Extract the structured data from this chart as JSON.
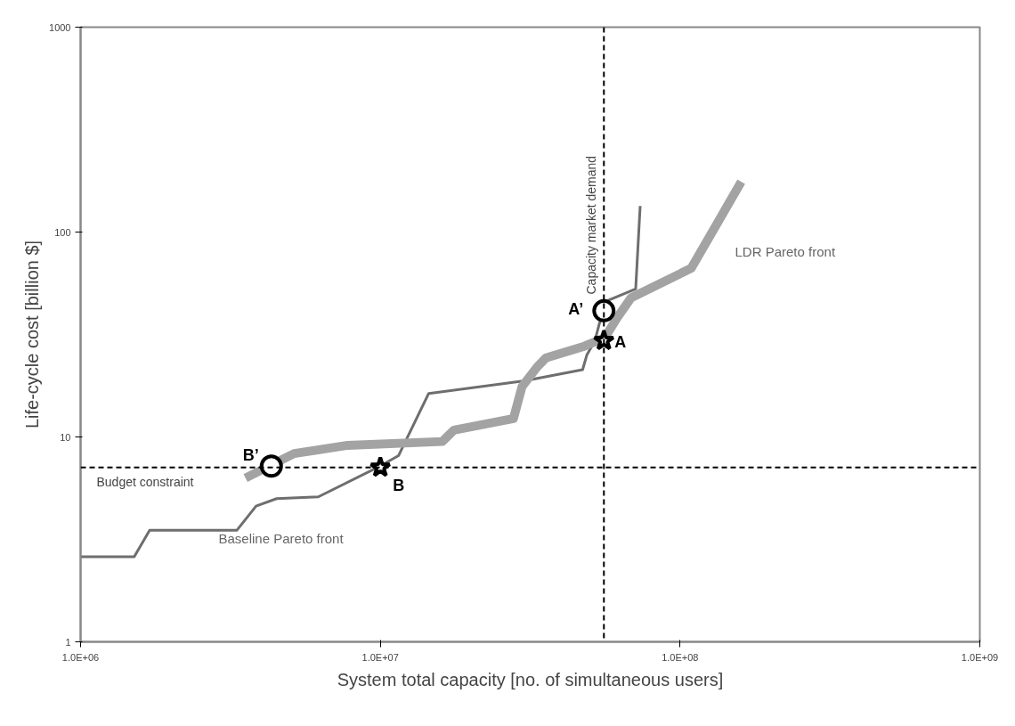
{
  "chart_data": {
    "type": "line",
    "xlabel": "System total capacity [no. of simultaneous users]",
    "ylabel": "Life-cycle cost [billion $]",
    "log": "xy",
    "grid": false,
    "xlim": [
      1000000,
      1000000000
    ],
    "xticks": [
      {
        "value": 1000000,
        "label": "1.0E+06"
      },
      {
        "value": 10000000,
        "label": "1.0E+07"
      },
      {
        "value": 100000000,
        "label": "1.0E+08"
      },
      {
        "value": 1000000000,
        "label": "1.0E+09"
      }
    ],
    "ylim": [
      1,
      1000
    ],
    "yticks": [
      1,
      10,
      100,
      1000
    ],
    "series": [
      {
        "color": "#6e6e6e",
        "x": [
          1000000,
          1510000,
          1700000,
          3320000,
          3850000,
          4510000,
          6210000,
          9800000,
          11500000,
          14500000,
          30300000,
          47300000,
          48900000,
          52000000,
          53800000,
          57600000,
          71100000,
          73600000
        ],
        "values": [
          2.6,
          2.6,
          3.5,
          3.5,
          4.6,
          5.0,
          5.1,
          7.1,
          8.1,
          16.3,
          18.8,
          21.3,
          25.2,
          29.5,
          35.8,
          46.4,
          52.7,
          134
        ]
      },
      {
        "color": "#a3a3a3",
        "x": [
          3550000,
          5160000,
          7780000,
          16100000,
          17600000,
          27800000,
          29700000,
          33400000,
          35700000,
          47900000,
          56100000,
          61700000,
          68700000,
          109000000,
          160000000
        ],
        "values": [
          6.3,
          8.3,
          9.1,
          9.5,
          10.8,
          12.3,
          17.6,
          22.0,
          24.3,
          27.7,
          30.5,
          38.2,
          47.8,
          66.6,
          176
        ]
      },
      {
        "type": "scatter",
        "marker": "circle",
        "color": "#000000",
        "x": [
          55700000,
          4330000
        ],
        "values": [
          41.3,
          7.2
        ]
      },
      {
        "type": "scatter",
        "marker": "star",
        "color": "#000000",
        "x": [
          55700000,
          10000000
        ],
        "values": [
          29.5,
          7.1
        ]
      }
    ],
    "ref_lines": [
      {
        "axis": "y",
        "value": 7.1,
        "label": "Budget constraint",
        "line_style": "dashed",
        "color": "#000000"
      },
      {
        "axis": "x",
        "value": 55700000,
        "label": "Capacity market demand",
        "line_style": "dashed",
        "color": "#000000"
      }
    ],
    "annotations": [
      {
        "text": "A’",
        "x": 55700000,
        "y": 41.3
      },
      {
        "text": "A",
        "x": 55700000,
        "y": 29.5
      },
      {
        "text": "B’",
        "x": 4330000,
        "y": 7.2
      },
      {
        "text": "B",
        "x": 10000000,
        "y": 7.1
      },
      "LDR Pareto front",
      "Baseline Pareto front"
    ]
  }
}
